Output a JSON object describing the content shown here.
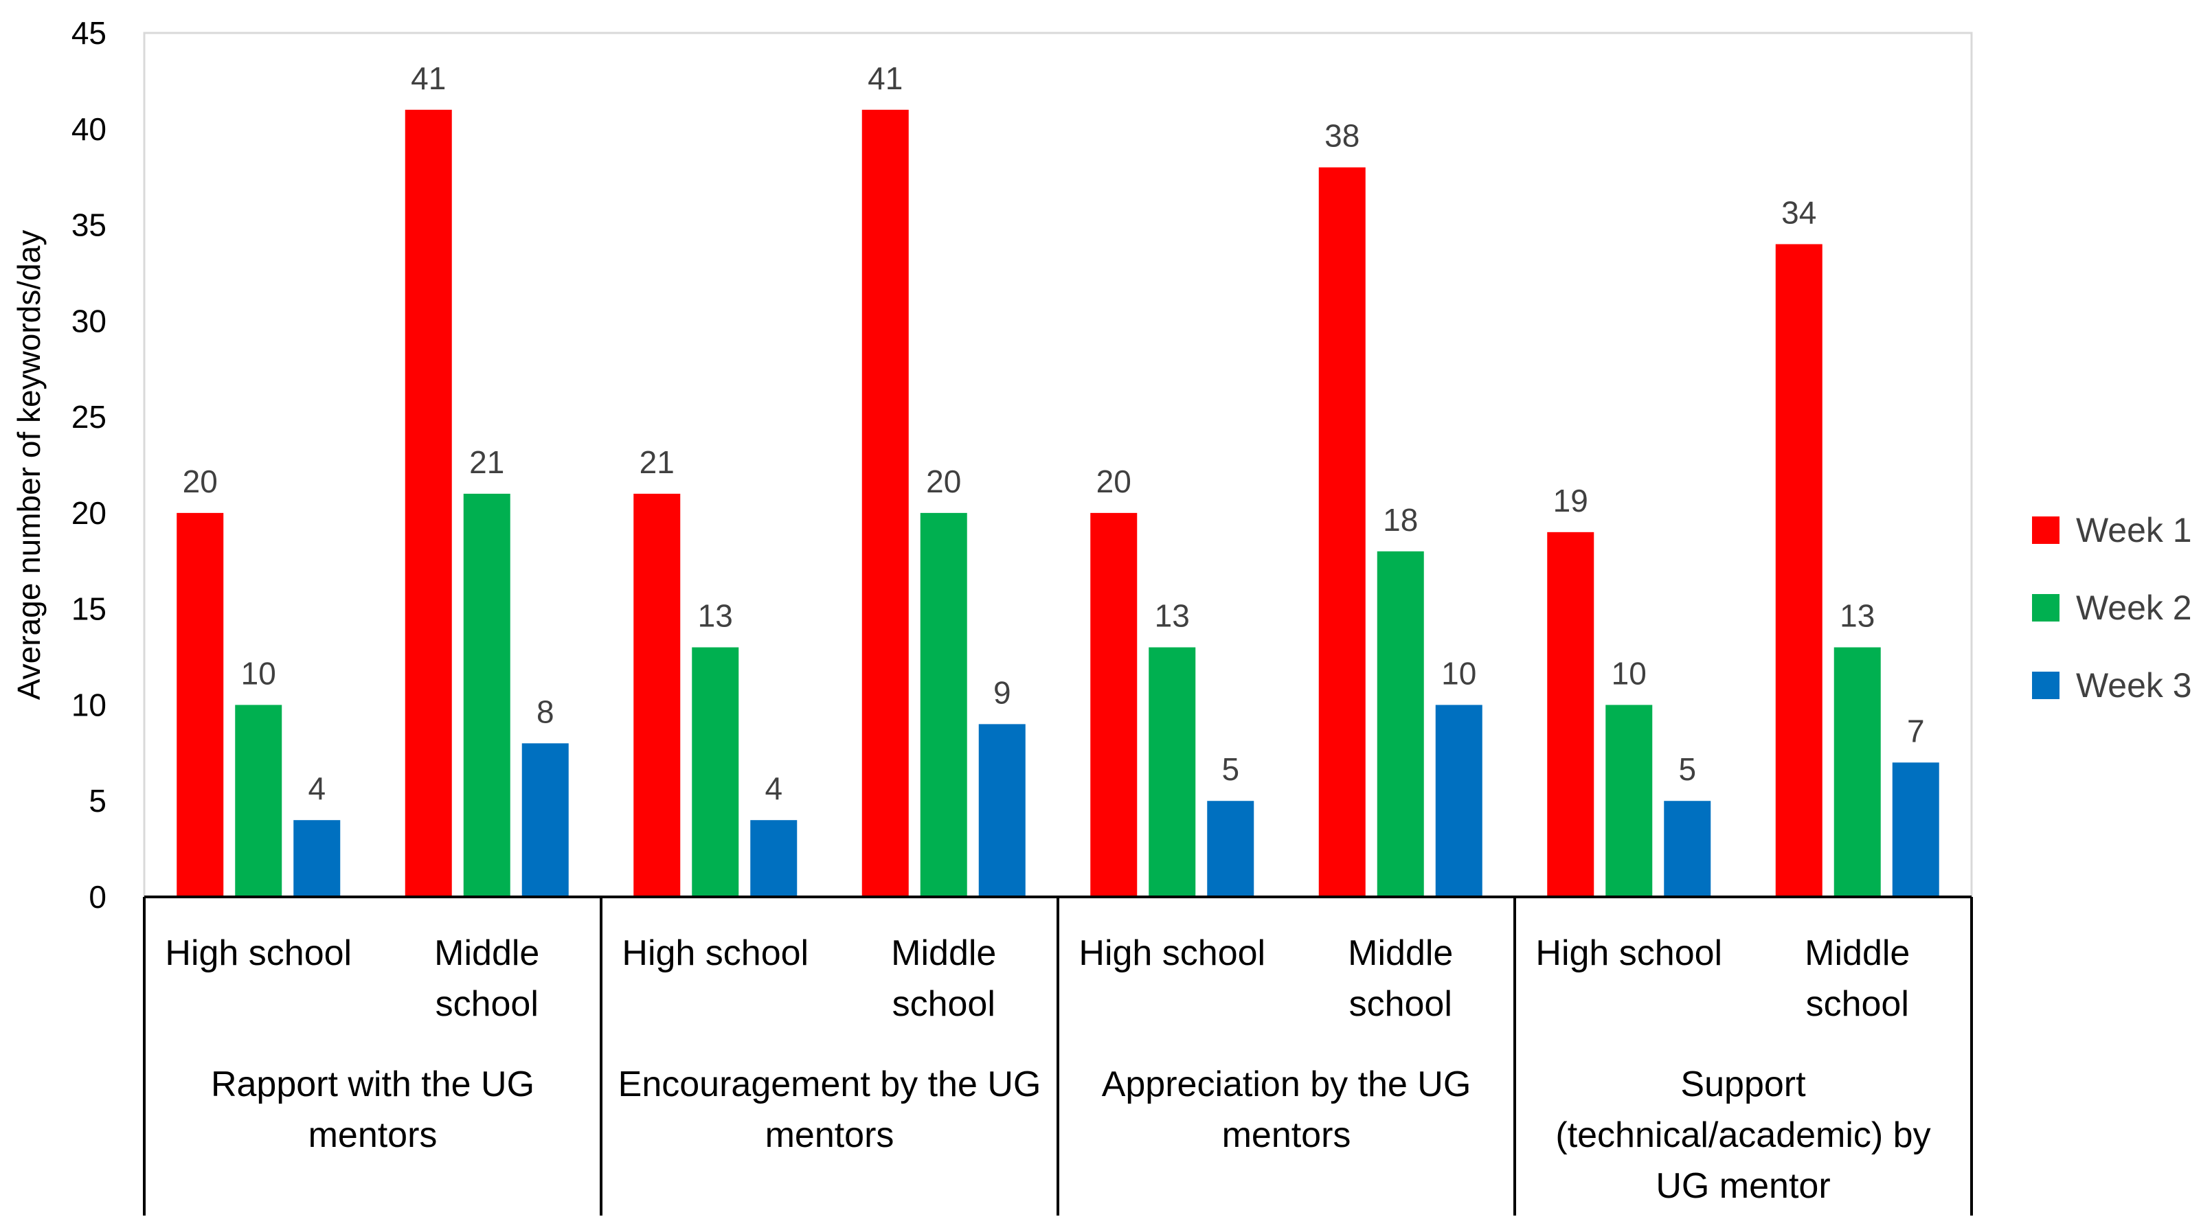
{
  "chart_data": {
    "type": "bar",
    "title": "",
    "xlabel": "",
    "ylabel": "Average number of keywords/day",
    "ylim": [
      0,
      45
    ],
    "yticks": [
      "0",
      "5",
      "10",
      "15",
      "20",
      "25",
      "30",
      "35",
      "40",
      "45"
    ],
    "grid": false,
    "legend_position": "right",
    "groups": [
      {
        "lines": [
          "Rapport with the UG",
          "mentors"
        ]
      },
      {
        "lines": [
          "Encouragement by the UG",
          "mentors"
        ]
      },
      {
        "lines": [
          "Appreciation by the UG",
          "mentors"
        ]
      },
      {
        "lines": [
          "Support",
          "(technical/academic) by",
          "UG mentor"
        ]
      }
    ],
    "subcategories": [
      {
        "lines": [
          "High school"
        ]
      },
      {
        "lines": [
          "Middle",
          "school"
        ]
      }
    ],
    "series": [
      {
        "name": "Week 1",
        "color": "#ff0000",
        "values": [
          20,
          41,
          21,
          41,
          20,
          38,
          19,
          34
        ]
      },
      {
        "name": "Week 2",
        "color": "#00b050",
        "values": [
          10,
          21,
          13,
          20,
          13,
          18,
          10,
          13
        ]
      },
      {
        "name": "Week 3",
        "color": "#0070c0",
        "values": [
          4,
          8,
          4,
          9,
          5,
          10,
          5,
          7
        ]
      }
    ]
  }
}
